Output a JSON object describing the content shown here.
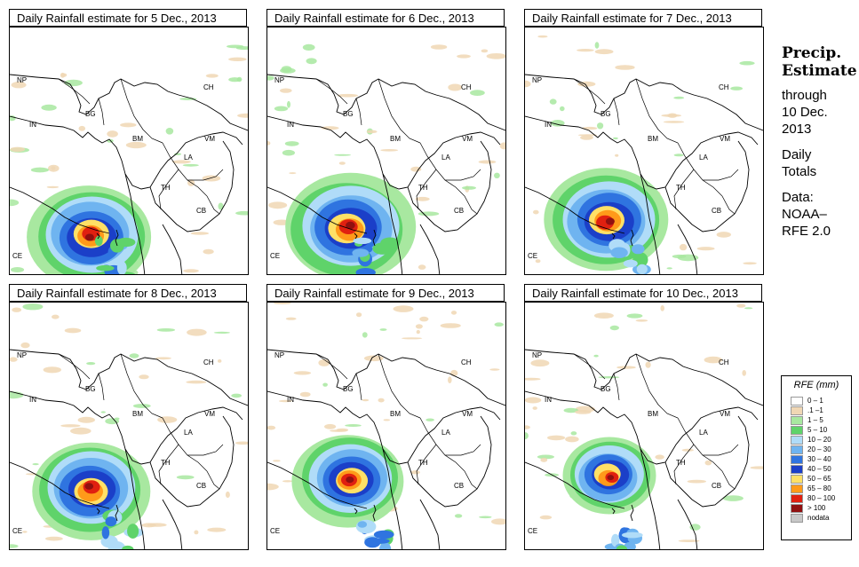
{
  "panels": [
    {
      "title": "Daily Rainfall estimate for  5 Dec., 2013",
      "storm": {
        "x": 90,
        "y": 235,
        "r": 1.0
      }
    },
    {
      "title": "Daily Rainfall estimate for  6 Dec., 2013",
      "storm": {
        "x": 92,
        "y": 225,
        "r": 1.05
      }
    },
    {
      "title": "Daily Rainfall estimate for  7 Dec., 2013",
      "storm": {
        "x": 93,
        "y": 218,
        "r": 1.0
      }
    },
    {
      "title": "Daily Rainfall estimate for  8 Dec., 2013",
      "storm": {
        "x": 91,
        "y": 210,
        "r": 0.95
      }
    },
    {
      "title": "Daily Rainfall estimate for  9 Dec., 2013",
      "storm": {
        "x": 93,
        "y": 200,
        "r": 0.9
      }
    },
    {
      "title": "Daily Rainfall estimate for  10 Dec., 2013",
      "storm": {
        "x": 95,
        "y": 195,
        "r": 0.75
      }
    }
  ],
  "country_labels": [
    "NP",
    "CH",
    "IN",
    "BG",
    "BM",
    "VM",
    "LA",
    "TH",
    "CB",
    "CE"
  ],
  "side_text": {
    "heading1": "Precip.",
    "heading2": "Estimate",
    "through": "through",
    "date1": "10 Dec.",
    "date2": "2013",
    "daily1": "Daily",
    "daily2": "Totals",
    "data1": "Data:",
    "data2": "NOAA–",
    "data3": "RFE 2.0"
  },
  "legend": {
    "title": "RFE (mm)",
    "classes": [
      {
        "label": "0 – 1",
        "color": "#fefefe"
      },
      {
        "label": ".1 –1",
        "color": "#f0d7b4"
      },
      {
        "label": "1 – 5",
        "color": "#a8e8a0"
      },
      {
        "label": "5 – 10",
        "color": "#5fd36a"
      },
      {
        "label": "10 – 20",
        "color": "#b0dcf8"
      },
      {
        "label": "20 – 30",
        "color": "#6fb4f0"
      },
      {
        "label": "30 – 40",
        "color": "#2f74e0"
      },
      {
        "label": "40 – 50",
        "color": "#1b3fc8"
      },
      {
        "label": "50 – 65",
        "color": "#ffe066"
      },
      {
        "label": "65 – 80",
        "color": "#ff9a1a"
      },
      {
        "label": "80 – 100",
        "color": "#e02010"
      },
      {
        "label": "> 100",
        "color": "#901010"
      },
      {
        "label": "nodata",
        "color": "#c8c8c8"
      }
    ]
  }
}
